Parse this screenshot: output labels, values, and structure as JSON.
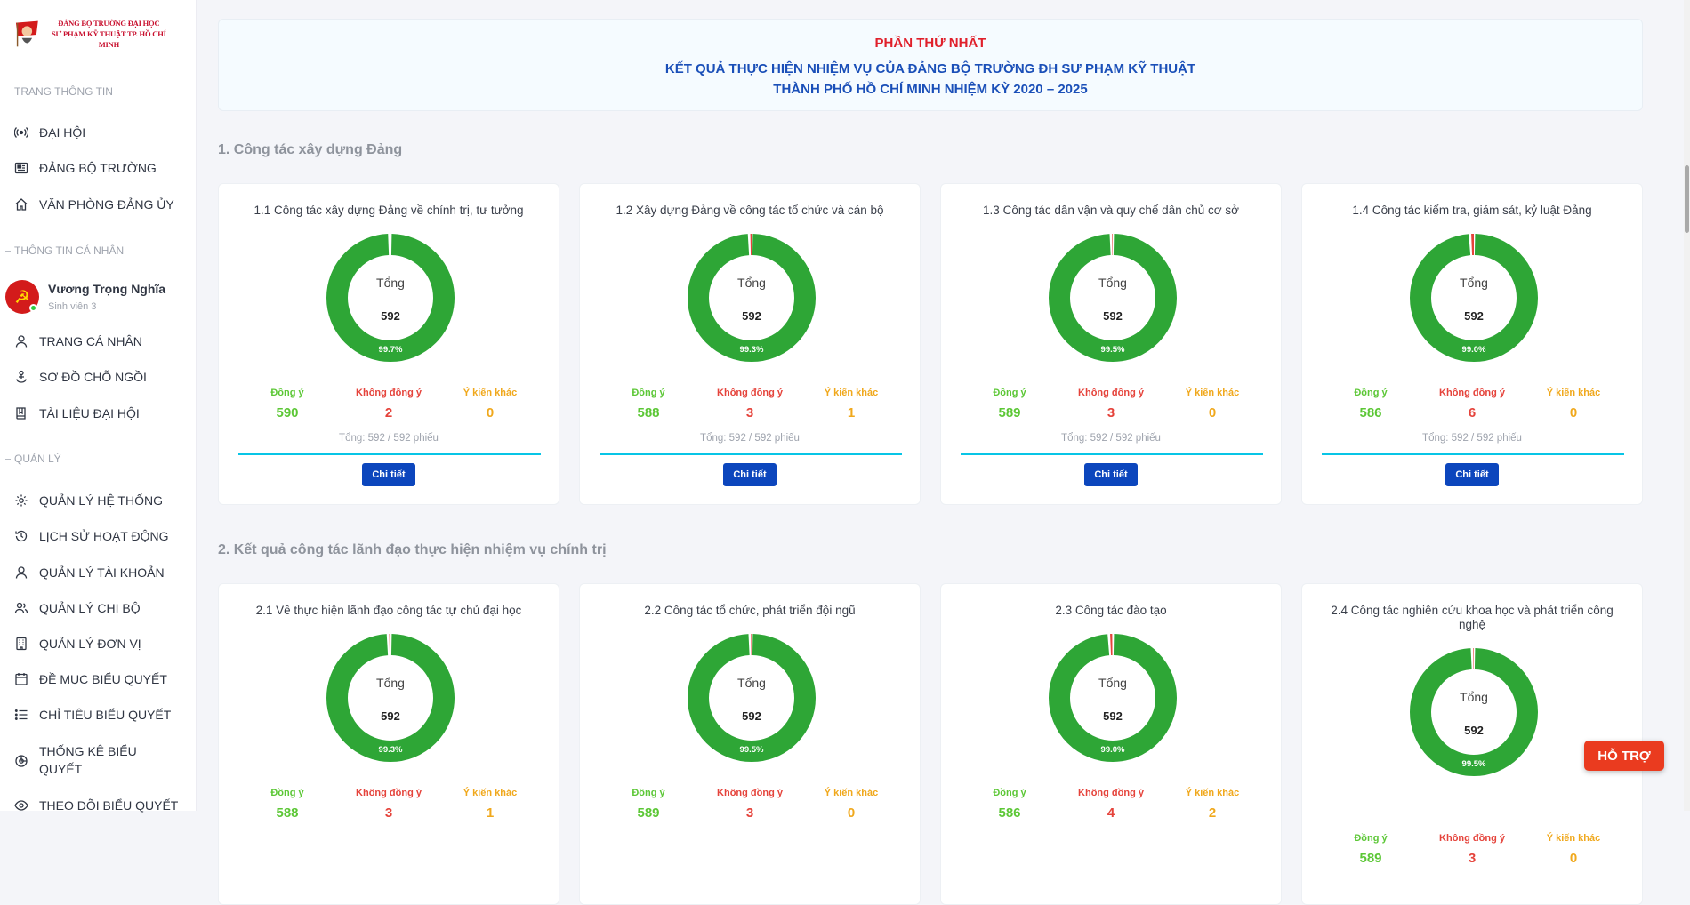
{
  "logo": {
    "line1": "ĐẢNG BỘ TRƯỜNG ĐẠI HỌC",
    "line2": "SƯ PHẠM KỸ THUẬT TP. HỒ CHÍ MINH"
  },
  "sidebar": {
    "section_info": "TRANG THÔNG TIN",
    "info_items": [
      {
        "label": "ĐẠI HỘI",
        "icon": "broadcast-icon"
      },
      {
        "label": "ĐẢNG BỘ TRƯỜNG",
        "icon": "newspaper-icon"
      },
      {
        "label": "VĂN PHÒNG ĐẢNG ỦY",
        "icon": "home-icon"
      }
    ],
    "section_personal": "THÔNG TIN CÁ NHÂN",
    "user": {
      "name": "Vương Trọng Nghĩa",
      "role": "Sinh viên 3"
    },
    "personal_items": [
      {
        "label": "TRANG CÁ NHÂN",
        "icon": "user-icon"
      },
      {
        "label": "SƠ ĐỒ CHỖ NGỒI",
        "icon": "seat-icon"
      },
      {
        "label": "TÀI LIỆU ĐẠI HỘI",
        "icon": "book-icon"
      }
    ],
    "section_admin": "QUẢN LÝ",
    "admin_items": [
      {
        "label": "QUẢN LÝ HỆ THỐNG",
        "icon": "gear-icon"
      },
      {
        "label": "LỊCH SỬ HOẠT ĐỘNG",
        "icon": "history-icon"
      },
      {
        "label": "QUẢN LÝ TÀI KHOẢN",
        "icon": "user-icon"
      },
      {
        "label": "QUẢN LÝ CHI BỘ",
        "icon": "users-icon"
      },
      {
        "label": "QUẢN LÝ ĐƠN VỊ",
        "icon": "building-icon"
      },
      {
        "label": "ĐỀ MỤC BIỂU QUYẾT",
        "icon": "calendar-icon"
      },
      {
        "label": "CHỈ TIÊU BIỂU QUYẾT",
        "icon": "list-icon"
      },
      {
        "label": "THỐNG KÊ BIỂU QUYẾT",
        "icon": "chart-icon"
      },
      {
        "label": "THEO DÕI BIỂU QUYẾT",
        "icon": "eye-icon"
      }
    ]
  },
  "header": {
    "part": "PHẦN THỨ NHẤT",
    "line1": "KẾT QUẢ THỰC HIỆN NHIỆM VỤ CỦA ĐẢNG BỘ TRƯỜNG ĐH SƯ PHẠM KỸ THUẬT",
    "line2": "THÀNH PHỐ HỒ CHÍ MINH NHIỆM KỲ 2020 – 2025"
  },
  "labels": {
    "total": "Tổng",
    "agree": "Đồng ý",
    "disagree": "Không đồng ý",
    "other": "Ý kiến khác",
    "detail": "Chi tiết"
  },
  "colors": {
    "agree": "#2ea636",
    "disagree": "#e5433b",
    "other": "#f0a81c",
    "accent": "#0c46bd"
  },
  "sections": [
    {
      "title": "1. Công tác xây dựng Đảng",
      "cards": [
        {
          "title": "1.1 Công tác xây dựng Đảng về chính trị, tư tưởng",
          "total": "592",
          "percent": "99.7%",
          "agree": 590,
          "disagree": 2,
          "other": 0,
          "ballot": "Tổng: 592 / 592 phiếu"
        },
        {
          "title": "1.2 Xây dựng Đảng về công tác tổ chức và cán bộ",
          "total": "592",
          "percent": "99.3%",
          "agree": 588,
          "disagree": 3,
          "other": 1,
          "ballot": "Tổng: 592 / 592 phiếu"
        },
        {
          "title": "1.3 Công tác dân vận và quy chế dân chủ cơ sở",
          "total": "592",
          "percent": "99.5%",
          "agree": 589,
          "disagree": 3,
          "other": 0,
          "ballot": "Tổng: 592 / 592 phiếu"
        },
        {
          "title": "1.4 Công tác kiểm tra, giám sát, kỷ luật Đảng",
          "total": "592",
          "percent": "99.0%",
          "agree": 586,
          "disagree": 6,
          "other": 0,
          "ballot": "Tổng: 592 / 592 phiếu"
        }
      ]
    },
    {
      "title": "2. Kết quả công tác lãnh đạo thực hiện nhiệm vụ chính trị",
      "cards": [
        {
          "title": "2.1 Về thực hiện lãnh đạo công tác tự chủ đại học",
          "total": "592",
          "percent": "99.3%",
          "agree": 588,
          "disagree": 3,
          "other": 1
        },
        {
          "title": "2.2 Công tác tổ chức, phát triển đội ngũ",
          "total": "592",
          "percent": "99.5%",
          "agree": 589,
          "disagree": 3,
          "other": 0
        },
        {
          "title": "2.3 Công tác đào tạo",
          "total": "592",
          "percent": "99.0%",
          "agree": 586,
          "disagree": 4,
          "other": 2
        },
        {
          "title": "2.4 Công tác nghiên cứu khoa học và phát triển công nghệ",
          "total": "592",
          "percent": "99.5%",
          "agree": 589,
          "disagree": 3,
          "other": 0
        }
      ]
    }
  ],
  "support_label": "HỖ TRỢ"
}
